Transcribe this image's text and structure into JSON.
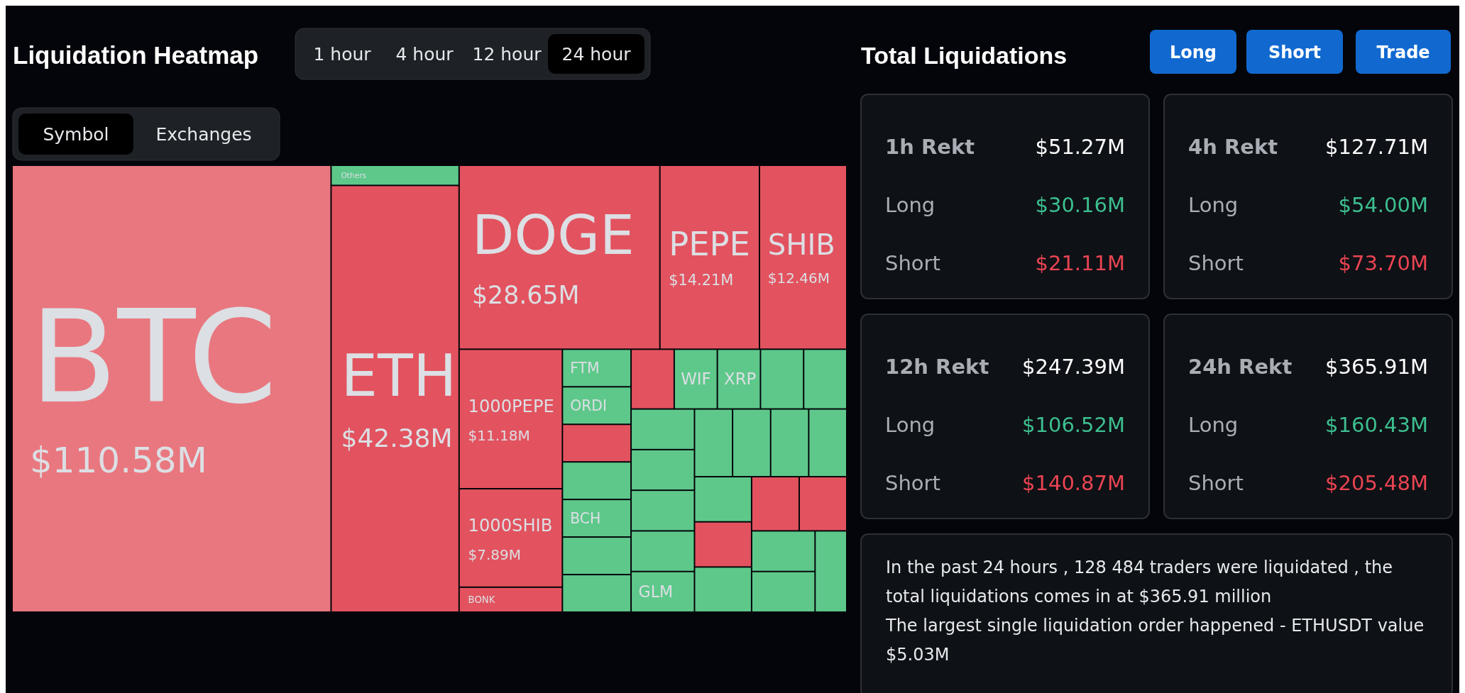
{
  "chart_data": [
    {
      "type": "other",
      "title": "Liquidation Heatmap",
      "annotations": [
        "1 hour",
        "4 hour",
        "12 hour",
        "24 hour",
        "Symbol",
        "Exchanges"
      ],
      "categories": [
        "BTC",
        "Others",
        "ETH",
        "DOGE",
        "PEPE",
        "SHIB",
        "1000PEPE",
        "1000SHIB",
        "BONK",
        "FTM",
        "ORDI",
        null,
        null,
        "BCH",
        null,
        null,
        null,
        "WIF",
        "XRP",
        null,
        null,
        null,
        null,
        null,
        null,
        "GLM",
        null,
        null,
        null,
        null,
        null,
        null,
        null,
        null,
        null,
        null,
        null,
        null
      ],
      "values": [
        110.58,
        null,
        42.38,
        28.65,
        14.21,
        12.46,
        11.18,
        7.89,
        null,
        null,
        null,
        null,
        null,
        null,
        null,
        null,
        null,
        null,
        null,
        null,
        null,
        null,
        null,
        null,
        null,
        null,
        null,
        null,
        null,
        null,
        null,
        null,
        null,
        null,
        null,
        null,
        null,
        null
      ],
      "value_labels": [
        "$110.58M",
        null,
        "$42.38M",
        "$28.65M",
        "$14.21M",
        "$12.46M",
        "$11.18M",
        "$7.89M",
        null,
        null,
        null,
        null,
        null,
        null,
        null,
        null,
        null,
        null,
        null,
        null,
        null,
        null,
        null,
        null,
        null,
        null,
        null,
        null,
        null,
        null,
        null,
        null,
        null,
        null,
        null,
        null,
        null,
        null
      ],
      "colors": [
        "#e9777f",
        "#5ec88a",
        "#e2535f",
        "#e2535f",
        "#e2535f",
        "#e2535f",
        "#e2535f",
        "#e2535f",
        "#e2535f",
        "#5ec88a",
        "#5ec88a",
        "#e2535f",
        "#5ec88a",
        "#5ec88a",
        "#5ec88a",
        "#5ec88a",
        "#e2535f",
        "#5ec88a",
        "#5ec88a",
        "#5ec88a",
        "#5ec88a",
        "#5ec88a",
        "#5ec88a",
        "#5ec88a",
        "#5ec88a",
        "#5ec88a",
        "#5ec88a",
        "#5ec88a",
        "#5ec88a",
        "#5ec88a",
        "#5ec88a",
        "#e2535f",
        "#5ec88a",
        "#e2535f",
        "#e2535f",
        "#5ec88a",
        "#5ec88a",
        "#5ec88a"
      ]
    },
    {
      "type": "other",
      "title": "Total Liquidations",
      "annotations": [
        "Long",
        "Short",
        "Trade",
        "1h Rekt",
        "$51.27M",
        "Long",
        "$30.16M",
        "Short",
        "$21.11M",
        "4h Rekt",
        "$127.71M",
        "Long",
        "$54.00M",
        "Short",
        "$73.70M",
        "12h Rekt",
        "$247.39M",
        "Long",
        "$106.52M",
        "Short",
        "$140.87M",
        "24h Rekt",
        "$365.91M",
        "Long",
        "$160.43M",
        "Short",
        "$205.48M",
        "In the past 24 hours , 128 484 traders were liquidated , the total liquidations comes in at $365.91 million",
        "The largest single liquidation order happened - ETHUSDT value $5.03M"
      ]
    }
  ]
}
